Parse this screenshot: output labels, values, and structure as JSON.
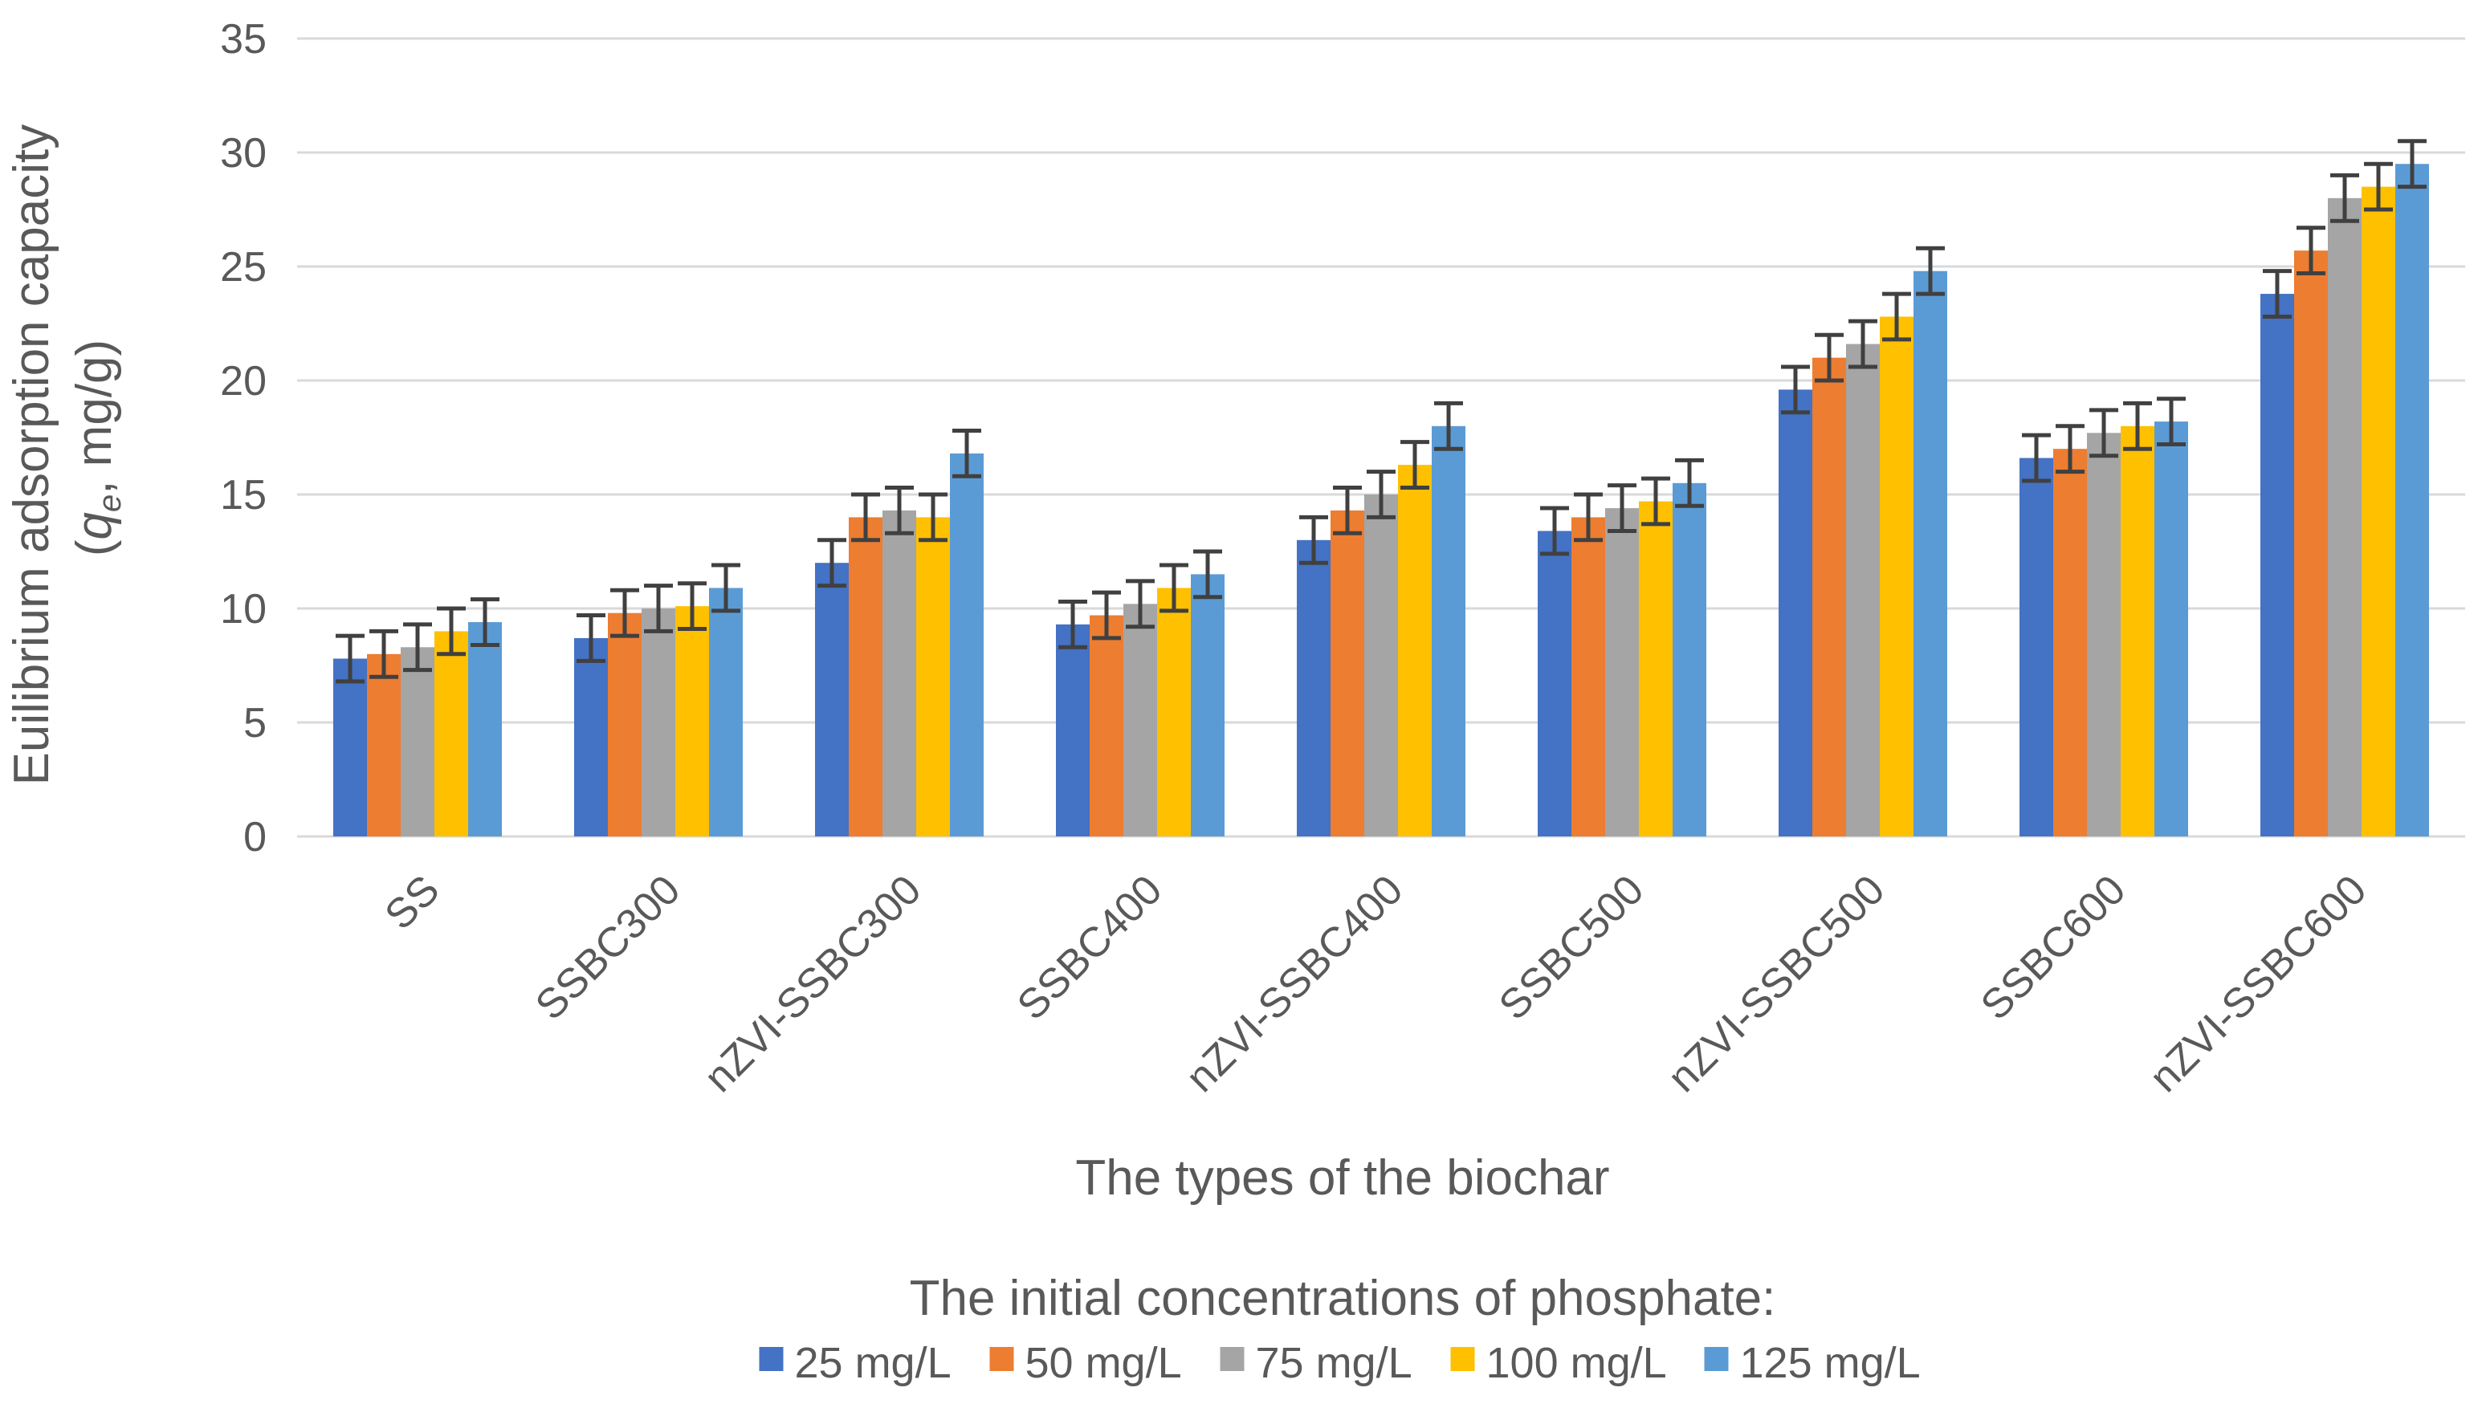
{
  "chart_data": {
    "type": "bar",
    "title": "",
    "xlabel": "The types of the biochar",
    "ylabel_line1": "Euilibrium adsorption capacity",
    "ylabel_line2_open": "(",
    "ylabel_q": "q",
    "ylabel_sub": "e",
    "ylabel_line2_rest": ", mg/g)",
    "ylim": [
      0,
      35
    ],
    "yticks": [
      0,
      5,
      10,
      15,
      20,
      25,
      30,
      35
    ],
    "grid": true,
    "categories": [
      "SS",
      "SSBC300",
      "nZVI-SSBC300",
      "SSBC400",
      "nZVI-SSBC400",
      "SSBC500",
      "nZVI-SSBC500",
      "SSBC600",
      "nZVI-SSBC600"
    ],
    "legend_title": "The initial concentrations of phosphate:",
    "legend_position": "bottom",
    "series": [
      {
        "name": "25 mg/L",
        "color": "#4472C4",
        "values": [
          7.8,
          8.7,
          12.0,
          9.3,
          13.0,
          13.4,
          19.6,
          16.6,
          23.8
        ],
        "errors": [
          1.0,
          1.0,
          1.0,
          1.0,
          1.0,
          1.0,
          1.0,
          1.0,
          1.0
        ]
      },
      {
        "name": "50 mg/L",
        "color": "#ED7D31",
        "values": [
          8.0,
          9.8,
          14.0,
          9.7,
          14.3,
          14.0,
          21.0,
          17.0,
          25.7
        ],
        "errors": [
          1.0,
          1.0,
          1.0,
          1.0,
          1.0,
          1.0,
          1.0,
          1.0,
          1.0
        ]
      },
      {
        "name": "75 mg/L",
        "color": "#A5A5A5",
        "values": [
          8.3,
          10.0,
          14.3,
          10.2,
          15.0,
          14.4,
          21.6,
          17.7,
          28.0
        ],
        "errors": [
          1.0,
          1.0,
          1.0,
          1.0,
          1.0,
          1.0,
          1.0,
          1.0,
          1.0
        ]
      },
      {
        "name": "100 mg/L",
        "color": "#FFC000",
        "values": [
          9.0,
          10.1,
          14.0,
          10.9,
          16.3,
          14.7,
          22.8,
          18.0,
          28.5
        ],
        "errors": [
          1.0,
          1.0,
          1.0,
          1.0,
          1.0,
          1.0,
          1.0,
          1.0,
          1.0
        ]
      },
      {
        "name": "125 mg/L",
        "color": "#5B9BD5",
        "values": [
          9.4,
          10.9,
          16.8,
          11.5,
          18.0,
          15.5,
          24.8,
          18.2,
          29.5
        ],
        "errors": [
          1.0,
          1.0,
          1.0,
          1.0,
          1.0,
          1.0,
          1.0,
          1.0,
          1.0
        ]
      }
    ],
    "colors": {
      "grid": "#D9D9D9",
      "axis": "#D9D9D9",
      "text": "#595959",
      "errorbar": "#404040"
    }
  }
}
